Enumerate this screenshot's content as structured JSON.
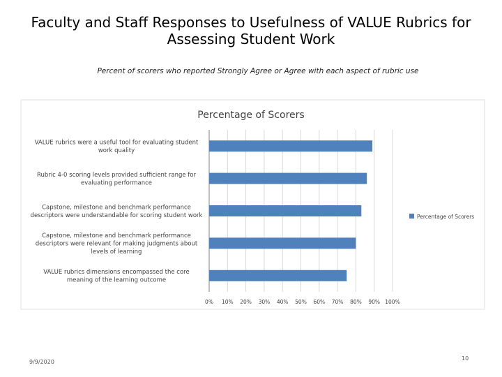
{
  "slide": {
    "title": "Faculty and Staff Responses to Usefulness of VALUE Rubrics for Assessing Student Work",
    "subtitle": "Percent of scorers who reported Strongly Agree or Agree with each aspect of rubric use",
    "date": "9/9/2020",
    "page_number": "10"
  },
  "chart_data": {
    "type": "bar",
    "orientation": "horizontal",
    "title": "Percentage of Scorers",
    "categories": [
      [
        "VALUE rubrics were a useful tool for evaluating student",
        "work quality"
      ],
      [
        "Rubric 4-0 scoring levels provided sufficient range for",
        "evaluating performance"
      ],
      [
        "Capstone, milestone and benchmark performance",
        "descriptors were understandable for scoring student work"
      ],
      [
        "Capstone, milestone and benchmark performance",
        "descriptors were relevant for making judgments about",
        "levels of learning"
      ],
      [
        "VALUE rubrics dimensions encompassed the core",
        "meaning of the learning outcome"
      ]
    ],
    "series": [
      {
        "name": "Percentage of Scorers",
        "values": [
          89,
          86,
          83,
          80,
          75
        ]
      }
    ],
    "xlim": [
      0,
      100
    ],
    "ticks": [
      0,
      10,
      20,
      30,
      40,
      50,
      60,
      70,
      80,
      90,
      100
    ],
    "tick_suffix": "%",
    "grid": true,
    "legend": "right",
    "bar_color": "#4f81bd",
    "grid_color": "#d9d9d9"
  }
}
